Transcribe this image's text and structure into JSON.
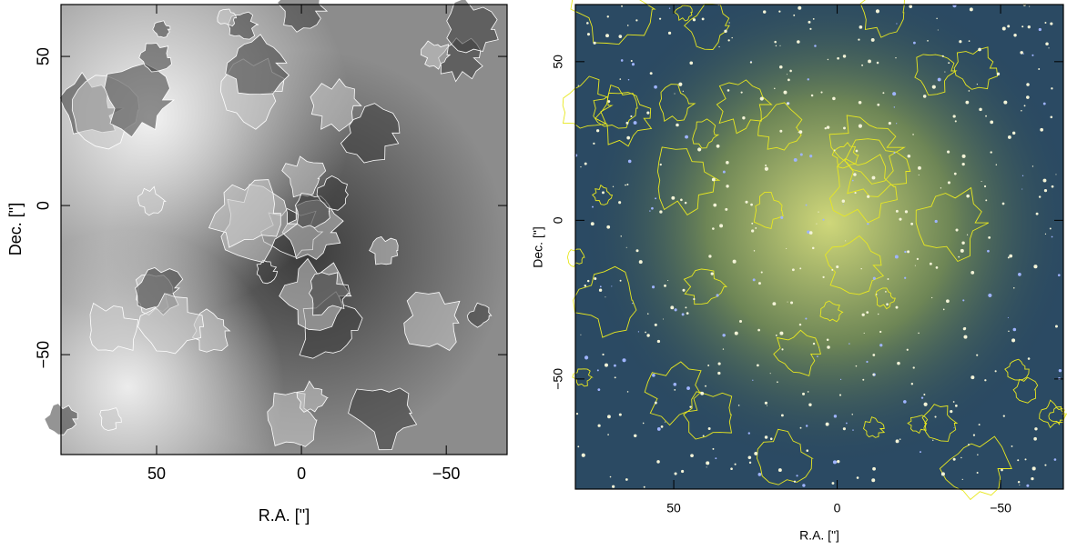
{
  "chart_data": [
    {
      "type": "image",
      "xlabel": "R.A. [\"]",
      "ylabel": "Dec. [\"]",
      "xlim": [
        83,
        -71
      ],
      "ylim": [
        -83.5,
        67.4
      ],
      "xticks": [
        50,
        0,
        {
          "value": -50,
          "label": "−50"
        }
      ],
      "yticks": [
        {
          "value": -50,
          "label": "−50"
        },
        0,
        50
      ]
    },
    {
      "type": "image",
      "xlabel": "R.A. [\"]",
      "ylabel": "Dec. [\"]",
      "xlim": [
        80.1,
        -69.2
      ],
      "ylim": [
        -84.7,
        68
      ],
      "xticks": [
        50,
        0,
        {
          "value": -50,
          "label": "−50"
        }
      ],
      "yticks": [
        {
          "value": -50,
          "label": "−50"
        },
        0,
        50
      ]
    }
  ]
}
